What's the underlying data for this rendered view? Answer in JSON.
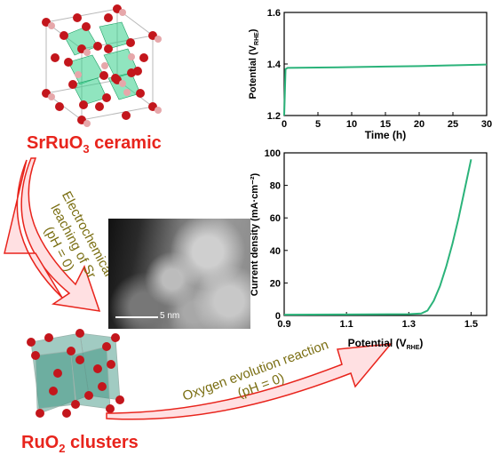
{
  "labels": {
    "top_material_main": "SrRuO",
    "top_material_sub": "3",
    "top_material_rest": " ceramic",
    "bottom_material_main": "RuO",
    "bottom_material_sub": "2",
    "bottom_material_rest": " clusters",
    "arrow1_line1": "Electrochemical",
    "arrow1_line2": "leaching of Sr",
    "arrow1_line3": "(pH = 0)",
    "arrow2_line1": "Oxygen evolution reaction",
    "arrow2_line2": "(pH = 0)",
    "tem_scale": "5 nm"
  },
  "colors": {
    "red": "#e8241c",
    "green_line": "#2bb37a",
    "arrow_fill": "#ffe0e2",
    "arrow_stroke": "#e8241c",
    "arrow_text": "#7a6e12"
  },
  "chart_data": [
    {
      "type": "line",
      "xlabel": "Time (h)",
      "ylabel_main": "Potential (V",
      "ylabel_sub": "RHE",
      "ylabel_end": ")",
      "xlim": [
        0,
        30
      ],
      "ylim": [
        1.2,
        1.6
      ],
      "xticks": [
        "0",
        "5",
        "10",
        "15",
        "20",
        "25",
        "30"
      ],
      "yticks": [
        "1.2",
        "1.4",
        "1.6"
      ],
      "series": [
        {
          "x": [
            0,
            0.2,
            0.5,
            5,
            10,
            15,
            20,
            25,
            30
          ],
          "y": [
            1.2,
            1.38,
            1.385,
            1.386,
            1.388,
            1.39,
            1.392,
            1.395,
            1.398
          ]
        }
      ]
    },
    {
      "type": "line",
      "xlabel_main": "Potential (V",
      "xlabel_sub": "RHE",
      "xlabel_end": ")",
      "ylabel": "Current density (mA·cm⁻²)",
      "xlim": [
        0.9,
        1.55
      ],
      "ylim": [
        0,
        100
      ],
      "xticks": [
        "0.9",
        "1.1",
        "1.3",
        "1.5"
      ],
      "yticks": [
        "0",
        "20",
        "40",
        "60",
        "80",
        "100"
      ],
      "series": [
        {
          "x": [
            0.9,
            1.1,
            1.3,
            1.34,
            1.36,
            1.38,
            1.4,
            1.42,
            1.44,
            1.46,
            1.48,
            1.5
          ],
          "y": [
            0.5,
            0.6,
            0.8,
            1.2,
            3,
            9,
            18,
            30,
            44,
            60,
            78,
            96
          ]
        }
      ]
    }
  ]
}
